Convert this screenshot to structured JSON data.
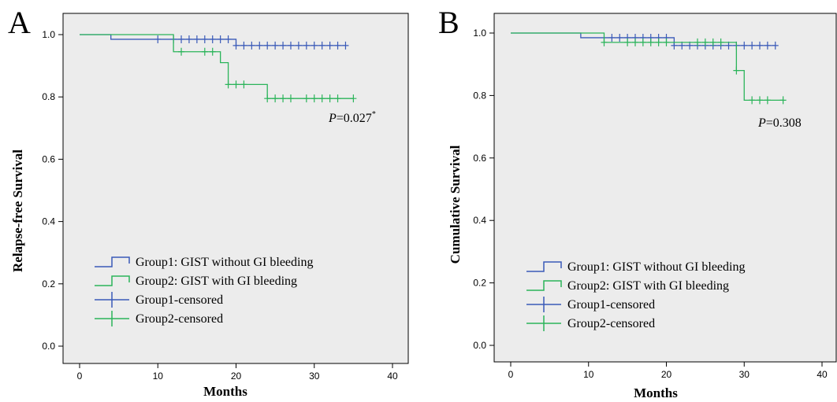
{
  "colors": {
    "group1": "#3a5ab8",
    "group2": "#2bb45a"
  },
  "chart_data": [
    {
      "type": "line",
      "panel": "A",
      "xlabel": "Months",
      "ylabel": "Relapse-free  Survival",
      "xlim": [
        0,
        40
      ],
      "ylim": [
        0,
        1
      ],
      "xticks": [
        "0",
        "10",
        "20",
        "30",
        "40"
      ],
      "yticks": [
        "0.0",
        "0.2",
        "0.4",
        "0.6",
        "0.8",
        "1.0"
      ],
      "annotation": {
        "italic": "P",
        "text": "=0.027",
        "sup": "*"
      },
      "legend": [
        {
          "label": "Group1: GIST without GI bleeding",
          "kind": "step",
          "color": "group1"
        },
        {
          "label": "Group2: GIST with GI bleeding",
          "kind": "step",
          "color": "group2"
        },
        {
          "label": "Group1-censored",
          "kind": "cross",
          "color": "group1"
        },
        {
          "label": "Group2-censored",
          "kind": "cross",
          "color": "group2"
        }
      ],
      "series": [
        {
          "name": "Group1: GIST without GI bleeding",
          "color": "group1",
          "steps": [
            [
              0,
              1.0
            ],
            [
              4,
              0.985
            ],
            [
              20,
              0.965
            ],
            [
              34,
              0.965
            ]
          ],
          "censored": [
            10,
            12,
            13,
            14,
            15,
            16,
            17,
            18,
            19,
            20,
            21,
            22,
            23,
            24,
            25,
            26,
            27,
            28,
            29,
            30,
            31,
            32,
            33,
            34
          ]
        },
        {
          "name": "Group2: GIST with GI bleeding",
          "color": "group2",
          "steps": [
            [
              0,
              1.0
            ],
            [
              12,
              0.945
            ],
            [
              18,
              0.91
            ],
            [
              19,
              0.84
            ],
            [
              24,
              0.795
            ],
            [
              35,
              0.795
            ]
          ],
          "censored": [
            13,
            16,
            17,
            19,
            20,
            21,
            24,
            25,
            26,
            27,
            29,
            30,
            31,
            32,
            33,
            35
          ]
        }
      ]
    },
    {
      "type": "line",
      "panel": "B",
      "xlabel": "Months",
      "ylabel": "Cumulative  Survival",
      "xlim": [
        0,
        40
      ],
      "ylim": [
        0,
        1
      ],
      "xticks": [
        "0",
        "10",
        "20",
        "30",
        "40"
      ],
      "yticks": [
        "0.0",
        "0.2",
        "0.4",
        "0.6",
        "0.8",
        "1.0"
      ],
      "annotation": {
        "italic": "P",
        "text": "=0.308",
        "sup": ""
      },
      "legend": [
        {
          "label": "Group1: GIST without GI bleeding",
          "kind": "step",
          "color": "group1"
        },
        {
          "label": "Group2: GIST with GI bleeding",
          "kind": "step",
          "color": "group2"
        },
        {
          "label": "Group1-censored",
          "kind": "cross",
          "color": "group1"
        },
        {
          "label": "Group2-censored",
          "kind": "cross",
          "color": "group2"
        }
      ],
      "series": [
        {
          "name": "Group1: GIST without GI bleeding",
          "color": "group1",
          "steps": [
            [
              0,
              1.0
            ],
            [
              9,
              0.985
            ],
            [
              21,
              0.96
            ],
            [
              34,
              0.96
            ]
          ],
          "censored": [
            13,
            14,
            15,
            16,
            17,
            18,
            19,
            20,
            21,
            22,
            23,
            24,
            25,
            26,
            27,
            28,
            29,
            30,
            31,
            32,
            33,
            34
          ]
        },
        {
          "name": "Group2: GIST with GI bleeding",
          "color": "group2",
          "steps": [
            [
              0,
              1.0
            ],
            [
              12,
              0.97
            ],
            [
              29,
              0.88
            ],
            [
              30,
              0.785
            ],
            [
              35,
              0.785
            ]
          ],
          "censored": [
            12,
            15,
            16,
            17,
            18,
            19,
            20,
            24,
            25,
            26,
            27,
            29,
            31,
            32,
            33,
            35
          ]
        }
      ]
    }
  ]
}
